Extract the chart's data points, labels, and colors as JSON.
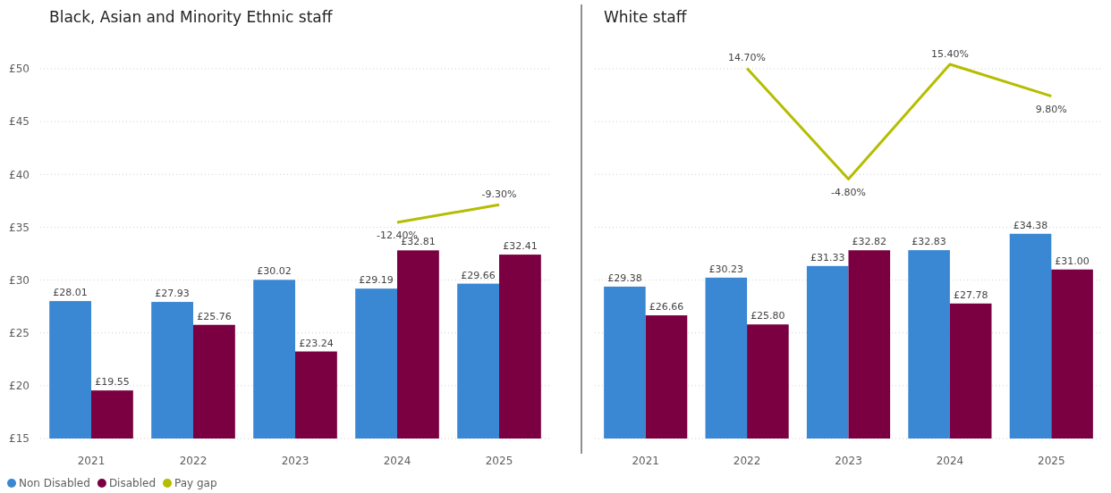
{
  "chart_data": [
    {
      "type": "bar",
      "title": "Black, Asian and Minority Ethnic staff",
      "categories": [
        "2021",
        "2022",
        "2023",
        "2024",
        "2025"
      ],
      "series": [
        {
          "name": "Non Disabled",
          "color": "#3a87d4",
          "values": [
            28.01,
            27.93,
            30.02,
            29.19,
            29.66
          ],
          "value_labels": [
            "£28.01",
            "£27.93",
            "£30.02",
            "£29.19",
            "£29.66"
          ]
        },
        {
          "name": "Disabled",
          "color": "#7b0041",
          "values": [
            19.55,
            25.76,
            23.24,
            32.81,
            32.41
          ],
          "value_labels": [
            "£19.55",
            "£25.76",
            "£23.24",
            "£32.81",
            "£32.41"
          ]
        },
        {
          "name": "Pay gap",
          "type": "line",
          "axis": "y2",
          "color": "#b5bd00",
          "values": [
            null,
            null,
            null,
            -12.4,
            -9.3
          ],
          "value_labels": [
            null,
            null,
            null,
            "-12.40%",
            "-9.30%"
          ]
        }
      ],
      "ylim": [
        15,
        50
      ],
      "yticks": [
        {
          "value": 15,
          "label": "£15"
        },
        {
          "value": 20,
          "label": "£20"
        },
        {
          "value": 25,
          "label": "£25"
        },
        {
          "value": 30,
          "label": "£30"
        },
        {
          "value": 35,
          "label": "£35"
        },
        {
          "value": 40,
          "label": "£40"
        },
        {
          "value": 45,
          "label": "£45"
        },
        {
          "value": 50,
          "label": "£50"
        }
      ],
      "grid": "y",
      "legend": "bottom left",
      "marker": "none",
      "line_style": "solid"
    },
    {
      "type": "bar",
      "title": "White staff",
      "categories": [
        "2021",
        "2022",
        "2023",
        "2024",
        "2025"
      ],
      "series": [
        {
          "name": "Non Disabled",
          "color": "#3a87d4",
          "values": [
            29.38,
            30.23,
            31.33,
            32.83,
            34.38
          ],
          "value_labels": [
            "£29.38",
            "£30.23",
            "£31.33",
            "£32.83",
            "£34.38"
          ]
        },
        {
          "name": "Disabled",
          "color": "#7b0041",
          "values": [
            26.66,
            25.8,
            32.82,
            27.78,
            31.0
          ],
          "value_labels": [
            "£26.66",
            "£25.80",
            "£32.82",
            "£27.78",
            "£31.00"
          ]
        },
        {
          "name": "Pay gap",
          "type": "line",
          "axis": "y2",
          "color": "#b5bd00",
          "values": [
            null,
            14.7,
            -4.8,
            15.4,
            9.8
          ],
          "value_labels": [
            null,
            "14.70%",
            "-4.80%",
            "15.40%",
            "9.80%"
          ]
        }
      ],
      "ylim": [
        15,
        50
      ],
      "yticks": [
        {
          "value": 15,
          "label": null
        },
        {
          "value": 20,
          "label": null
        },
        {
          "value": 25,
          "label": null
        },
        {
          "value": 30,
          "label": null
        },
        {
          "value": 35,
          "label": null
        },
        {
          "value": 40,
          "label": null
        },
        {
          "value": 45,
          "label": null
        },
        {
          "value": 50,
          "label": null
        }
      ],
      "grid": "y",
      "tick_labels": "x",
      "marker": "none",
      "line_style": "solid"
    }
  ]
}
